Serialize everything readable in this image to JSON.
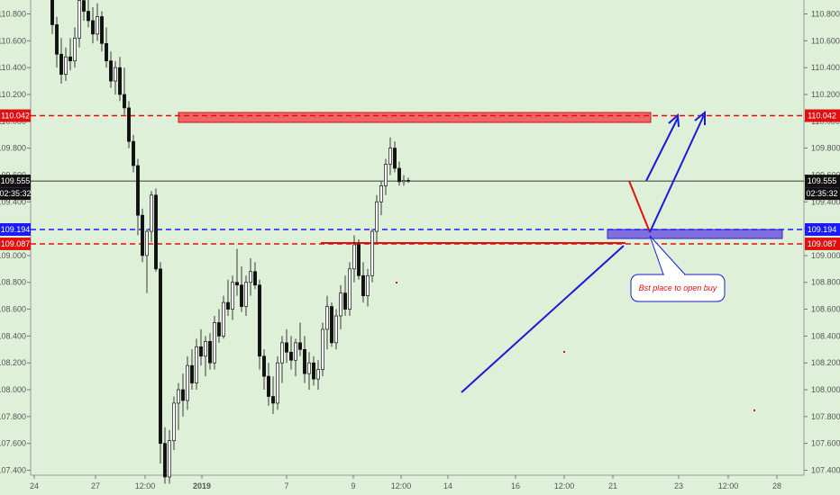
{
  "chart_data": {
    "type": "candlestick",
    "title": "",
    "xlabel": "",
    "ylabel": "",
    "ylim": [
      107.38,
      110.92
    ],
    "y_ticks": [
      "110.800",
      "110.600",
      "110.400",
      "110.200",
      "110.000",
      "109.800",
      "109.600",
      "109.400",
      "109.200",
      "109.000",
      "108.800",
      "108.600",
      "108.400",
      "108.200",
      "108.000",
      "107.800",
      "107.600",
      "107.400"
    ],
    "x_tick_labels": [
      "24",
      "27",
      "12:00",
      "2019",
      "7",
      "9",
      "12:00",
      "14",
      "16",
      "12:00",
      "21",
      "23",
      "12:00",
      "28"
    ],
    "grid": false,
    "candles": [
      [
        110.95,
        111.0,
        110.65,
        110.72
      ],
      [
        110.72,
        110.78,
        110.4,
        110.5
      ],
      [
        110.5,
        110.62,
        110.28,
        110.35
      ],
      [
        110.35,
        110.55,
        110.3,
        110.48
      ],
      [
        110.48,
        110.62,
        110.38,
        110.45
      ],
      [
        110.45,
        110.7,
        110.4,
        110.62
      ],
      [
        110.62,
        110.95,
        110.55,
        110.9
      ],
      [
        110.9,
        111.0,
        110.75,
        110.82
      ],
      [
        110.82,
        110.95,
        110.7,
        110.75
      ],
      [
        110.75,
        110.85,
        110.58,
        110.65
      ],
      [
        110.65,
        110.88,
        110.6,
        110.78
      ],
      [
        110.78,
        110.82,
        110.52,
        110.58
      ],
      [
        110.58,
        110.7,
        110.4,
        110.45
      ],
      [
        110.45,
        110.52,
        110.25,
        110.3
      ],
      [
        110.3,
        110.45,
        110.2,
        110.4
      ],
      [
        110.4,
        110.48,
        110.15,
        110.2
      ],
      [
        110.2,
        110.4,
        110.05,
        110.1
      ],
      [
        110.1,
        110.15,
        109.8,
        109.85
      ],
      [
        109.85,
        109.9,
        109.62,
        109.67
      ],
      [
        109.67,
        109.72,
        109.15,
        109.3
      ],
      [
        109.3,
        109.35,
        108.95,
        109.0
      ],
      [
        109.0,
        109.2,
        108.72,
        109.18
      ],
      [
        109.18,
        109.48,
        109.1,
        109.45
      ],
      [
        109.45,
        109.5,
        108.88,
        108.9
      ],
      [
        108.9,
        108.95,
        107.45,
        107.6
      ],
      [
        107.6,
        107.72,
        107.3,
        107.35
      ],
      [
        107.35,
        107.7,
        107.3,
        107.62
      ],
      [
        107.62,
        107.95,
        107.55,
        107.9
      ],
      [
        107.9,
        108.05,
        107.7,
        108.0
      ],
      [
        108.0,
        108.12,
        107.8,
        107.92
      ],
      [
        107.92,
        108.25,
        107.85,
        108.18
      ],
      [
        108.18,
        108.3,
        108.0,
        108.05
      ],
      [
        108.05,
        108.38,
        108.0,
        108.32
      ],
      [
        108.32,
        108.45,
        108.18,
        108.25
      ],
      [
        108.25,
        108.4,
        108.1,
        108.36
      ],
      [
        108.36,
        108.42,
        108.15,
        108.2
      ],
      [
        108.2,
        108.55,
        108.15,
        108.5
      ],
      [
        108.5,
        108.6,
        108.35,
        108.4
      ],
      [
        108.4,
        108.7,
        108.38,
        108.65
      ],
      [
        108.65,
        108.82,
        108.55,
        108.6
      ],
      [
        108.6,
        108.85,
        108.52,
        108.8
      ],
      [
        108.8,
        109.05,
        108.7,
        108.78
      ],
      [
        108.78,
        108.92,
        108.58,
        108.62
      ],
      [
        108.62,
        108.85,
        108.55,
        108.8
      ],
      [
        108.8,
        108.98,
        108.7,
        108.88
      ],
      [
        108.88,
        108.95,
        108.75,
        108.78
      ],
      [
        108.78,
        108.82,
        108.15,
        108.25
      ],
      [
        108.25,
        108.3,
        108.0,
        108.1
      ],
      [
        108.1,
        108.2,
        107.88,
        107.95
      ],
      [
        107.95,
        108.1,
        107.82,
        107.9
      ],
      [
        107.9,
        108.25,
        107.85,
        108.2
      ],
      [
        108.2,
        108.4,
        108.05,
        108.35
      ],
      [
        108.35,
        108.45,
        108.2,
        108.28
      ],
      [
        108.28,
        108.4,
        108.15,
        108.22
      ],
      [
        108.22,
        108.38,
        108.1,
        108.35
      ],
      [
        108.35,
        108.5,
        108.25,
        108.3
      ],
      [
        108.3,
        108.4,
        108.05,
        108.12
      ],
      [
        108.12,
        108.28,
        108.0,
        108.2
      ],
      [
        108.2,
        108.25,
        108.03,
        108.08
      ],
      [
        108.08,
        108.22,
        108.0,
        108.15
      ],
      [
        108.15,
        108.5,
        108.1,
        108.45
      ],
      [
        108.45,
        108.7,
        108.3,
        108.62
      ],
      [
        108.62,
        108.65,
        108.32,
        108.35
      ],
      [
        108.35,
        108.6,
        108.3,
        108.55
      ],
      [
        108.55,
        108.78,
        108.45,
        108.72
      ],
      [
        108.72,
        108.85,
        108.55,
        108.6
      ],
      [
        108.6,
        108.95,
        108.55,
        108.9
      ],
      [
        108.9,
        109.15,
        108.8,
        109.08
      ],
      [
        109.08,
        109.12,
        108.82,
        108.85
      ],
      [
        108.85,
        108.95,
        108.65,
        108.7
      ],
      [
        108.7,
        108.9,
        108.62,
        108.85
      ],
      [
        108.85,
        109.2,
        108.8,
        109.18
      ],
      [
        109.18,
        109.45,
        109.1,
        109.4
      ],
      [
        109.4,
        109.55,
        109.3,
        109.52
      ],
      [
        109.52,
        109.72,
        109.45,
        109.68
      ],
      [
        109.68,
        109.88,
        109.6,
        109.8
      ],
      [
        109.8,
        109.85,
        109.62,
        109.65
      ],
      [
        109.65,
        109.7,
        109.52,
        109.55
      ],
      [
        109.55,
        109.6,
        109.52,
        109.56
      ],
      [
        109.56,
        109.58,
        109.54,
        109.555
      ]
    ],
    "horizontal_levels": [
      {
        "label": "110.042",
        "value": 110.042,
        "color": "#e01010",
        "style": "dashed"
      },
      {
        "label": "109.555",
        "value": 109.555,
        "color": "#000000",
        "style": "solid"
      },
      {
        "label": "109.194",
        "value": 109.194,
        "color": "#1a1aff",
        "style": "dashed"
      },
      {
        "label": "109.087",
        "value": 109.087,
        "color": "#e01010",
        "style": "dashed"
      }
    ],
    "countdown_label": "02:35:32",
    "annotation": "Bst place to open buy"
  }
}
